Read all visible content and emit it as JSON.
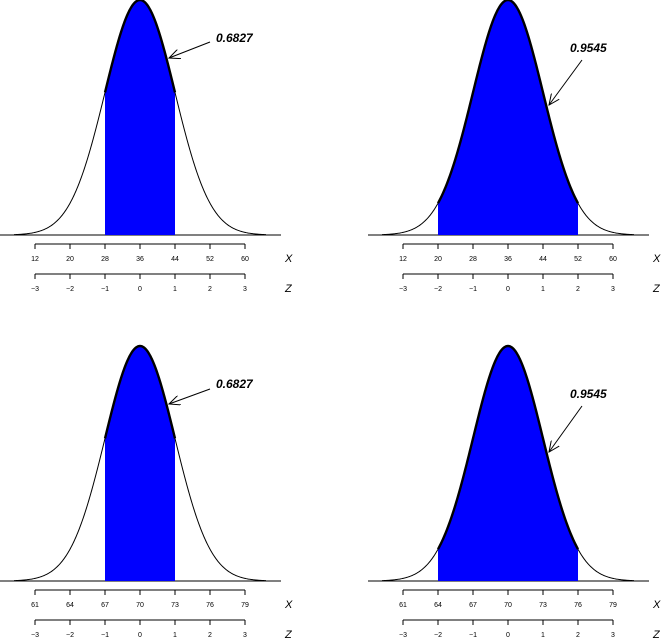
{
  "chart_data": [
    {
      "type": "area",
      "curve": "normal-density",
      "shade_color": "#0000ff",
      "shaded_z": [
        -1,
        1
      ],
      "annotation": "0.6827",
      "x_axis": {
        "name": "X",
        "ticks": [
          "12",
          "20",
          "28",
          "36",
          "44",
          "52",
          "60"
        ]
      },
      "z_axis": {
        "name": "Z",
        "ticks": [
          "−3",
          "−2",
          "−1",
          "0",
          "1",
          "2",
          "3"
        ]
      }
    },
    {
      "type": "area",
      "curve": "normal-density",
      "shade_color": "#0000ff",
      "shaded_z": [
        -2,
        2
      ],
      "annotation": "0.9545",
      "x_axis": {
        "name": "X",
        "ticks": [
          "12",
          "20",
          "28",
          "36",
          "44",
          "52",
          "60"
        ]
      },
      "z_axis": {
        "name": "Z",
        "ticks": [
          "−3",
          "−2",
          "−1",
          "0",
          "1",
          "2",
          "3"
        ]
      }
    },
    {
      "type": "area",
      "curve": "normal-density",
      "shade_color": "#0000ff",
      "shaded_z": [
        -1,
        1
      ],
      "annotation": "0.6827",
      "x_axis": {
        "name": "X",
        "ticks": [
          "61",
          "64",
          "67",
          "70",
          "73",
          "76",
          "79"
        ]
      },
      "z_axis": {
        "name": "Z",
        "ticks": [
          "−3",
          "−2",
          "−1",
          "0",
          "1",
          "2",
          "3"
        ]
      }
    },
    {
      "type": "area",
      "curve": "normal-density",
      "shade_color": "#0000ff",
      "shaded_z": [
        -2,
        2
      ],
      "annotation": "0.9545",
      "x_axis": {
        "name": "X",
        "ticks": [
          "61",
          "64",
          "67",
          "70",
          "73",
          "76",
          "79"
        ]
      },
      "z_axis": {
        "name": "Z",
        "ticks": [
          "−3",
          "−2",
          "−1",
          "0",
          "1",
          "2",
          "3"
        ]
      }
    }
  ]
}
